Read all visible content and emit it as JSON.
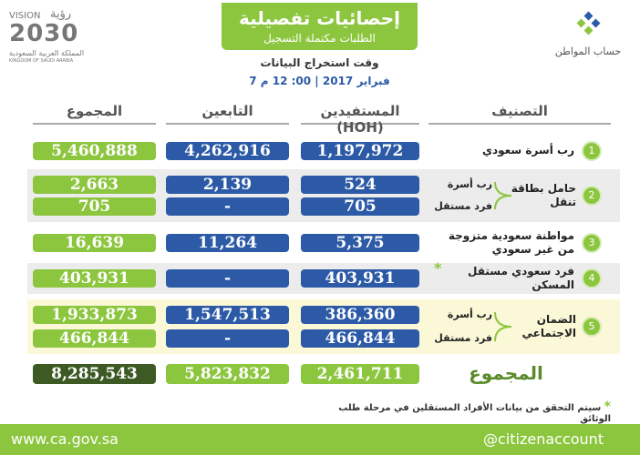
{
  "header": {
    "title": "إحصائيات تفصيلية",
    "subtitle": "الطلبات مكتملة التسجيل",
    "extraction_label": "وقت استخراج البيانات",
    "extraction_time": "فبراير 2017 | 00: 12 م 7"
  },
  "logos": {
    "vision_english": "VISION",
    "vision_arabic": "رؤية",
    "vision_year": "2030",
    "kingdom_arabic": "المملكة العربية السعودية",
    "kingdom_english": "KINGDOM OF SAUDI ARABIA",
    "citizen_account": "حساب المواطن"
  },
  "table": {
    "columns": [
      "التصنيف",
      "المستفيدين (HOH)",
      "التابعين",
      "المجموع"
    ],
    "rows": [
      {
        "number": "1",
        "label": "رب أسرة سعودي",
        "lines": [
          {
            "cells": [
              "1,197,972",
              "4,262,916",
              "5,460,888"
            ]
          }
        ]
      },
      {
        "number": "2",
        "label": "حامل بطاقة تنقل",
        "lines": [
          {
            "sublabel": "رب أسرة",
            "cells": [
              "524",
              "2,139",
              "2,663"
            ]
          },
          {
            "sublabel": "فرد مستقل",
            "cells": [
              "705",
              "-",
              "705"
            ]
          }
        ]
      },
      {
        "number": "3",
        "label": "مواطنة سعودية متزوجة من غير سعودي",
        "lines": [
          {
            "cells": [
              "5,375",
              "11,264",
              "16,639"
            ]
          }
        ]
      },
      {
        "number": "4",
        "label": "فرد سعودي مستقل المسكن",
        "note": "*",
        "lines": [
          {
            "cells": [
              "403,931",
              "-",
              "403,931"
            ]
          }
        ]
      },
      {
        "number": "5",
        "label": "الضمان الاجتماعي",
        "lines": [
          {
            "sublabel": "رب أسرة",
            "cells": [
              "386,360",
              "1,547,513",
              "1,933,873"
            ]
          },
          {
            "sublabel": "فرد مستقل",
            "cells": [
              "466,844",
              "-",
              "466,844"
            ]
          }
        ]
      }
    ],
    "total": {
      "label": "المجموع",
      "cells": [
        "2,461,711",
        "5,823,832",
        "8,285,543"
      ]
    }
  },
  "footnote": {
    "marker": "*",
    "text": "سيتم التحقق من بيانات الأفراد المستقلين في مرحلة طلب الوثائق"
  },
  "footer": {
    "website": "www.ca.gov.sa",
    "handle": "@citizenaccount"
  }
}
